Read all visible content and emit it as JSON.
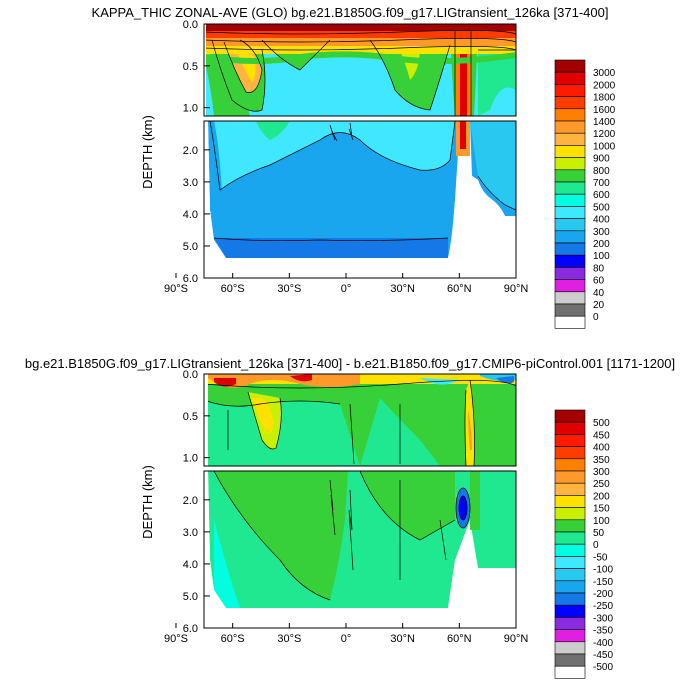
{
  "chart_data": [
    {
      "type": "heatmap",
      "title": "KAPPA_THIC ZONAL-AVE (GLO) bg.e21.B1850G.f09_g17.LIGtransient_126ka [371-400]",
      "ylabel": "DEPTH (km)",
      "x_ticks": [
        "90°S",
        "60°S",
        "30°S",
        "0°",
        "30°N",
        "60°N",
        "90°N"
      ],
      "x_range": [
        -90,
        90
      ],
      "y_ticks_upper": [
        "0.0",
        "0.5",
        "1.0"
      ],
      "y_ticks_lower": [
        "2.0",
        "3.0",
        "4.0",
        "5.0",
        "6.0"
      ],
      "y_range_upper": [
        0.0,
        1.1
      ],
      "y_range_lower": [
        1.1,
        6.0
      ],
      "colorbar_labels": [
        "3000",
        "2000",
        "1800",
        "1600",
        "1400",
        "1200",
        "1000",
        "900",
        "800",
        "700",
        "600",
        "500",
        "400",
        "300",
        "200",
        "100",
        "80",
        "60",
        "40",
        "20",
        "0"
      ],
      "colorbar_colors": [
        "#a50000",
        "#e00000",
        "#ff1a00",
        "#ff3c00",
        "#ff7f00",
        "#ff9a2a",
        "#ffb440",
        "#ffe100",
        "#c8f000",
        "#38d038",
        "#20e890",
        "#00ffe0",
        "#40e8ff",
        "#28c8f0",
        "#1aa6ee",
        "#1478e6",
        "#0000ff",
        "#8a2be2",
        "#e020e0",
        "#cccccc",
        "#707070",
        "#ffffff"
      ]
    },
    {
      "type": "heatmap",
      "title": "bg.e21.B1850G.f09_g17.LIGtransient_126ka [371-400] - b.e21.B1850.f09_g17.CMIP6-piControl.001 [1171-1200]",
      "ylabel": "DEPTH (km)",
      "x_ticks": [
        "90°S",
        "60°S",
        "30°S",
        "0°",
        "30°N",
        "60°N",
        "90°N"
      ],
      "x_range": [
        -90,
        90
      ],
      "y_ticks_upper": [
        "0.0",
        "0.5",
        "1.0"
      ],
      "y_ticks_lower": [
        "2.0",
        "3.0",
        "4.0",
        "5.0",
        "6.0"
      ],
      "y_range_upper": [
        0.0,
        1.1
      ],
      "y_range_lower": [
        1.1,
        6.0
      ],
      "colorbar_labels": [
        "500",
        "450",
        "400",
        "350",
        "300",
        "250",
        "200",
        "150",
        "100",
        "50",
        "0",
        "-50",
        "-100",
        "-150",
        "-200",
        "-250",
        "-300",
        "-350",
        "-400",
        "-450",
        "-500"
      ],
      "colorbar_colors": [
        "#a50000",
        "#e00000",
        "#ff1a00",
        "#ff3c00",
        "#ff7f00",
        "#ff9a2a",
        "#ffb440",
        "#ffe100",
        "#c8f000",
        "#38d038",
        "#20e890",
        "#00ffe0",
        "#40e8ff",
        "#28c8f0",
        "#1aa6ee",
        "#1478e6",
        "#0000ff",
        "#8a2be2",
        "#e020e0",
        "#cccccc",
        "#707070",
        "#ffffff"
      ]
    }
  ]
}
